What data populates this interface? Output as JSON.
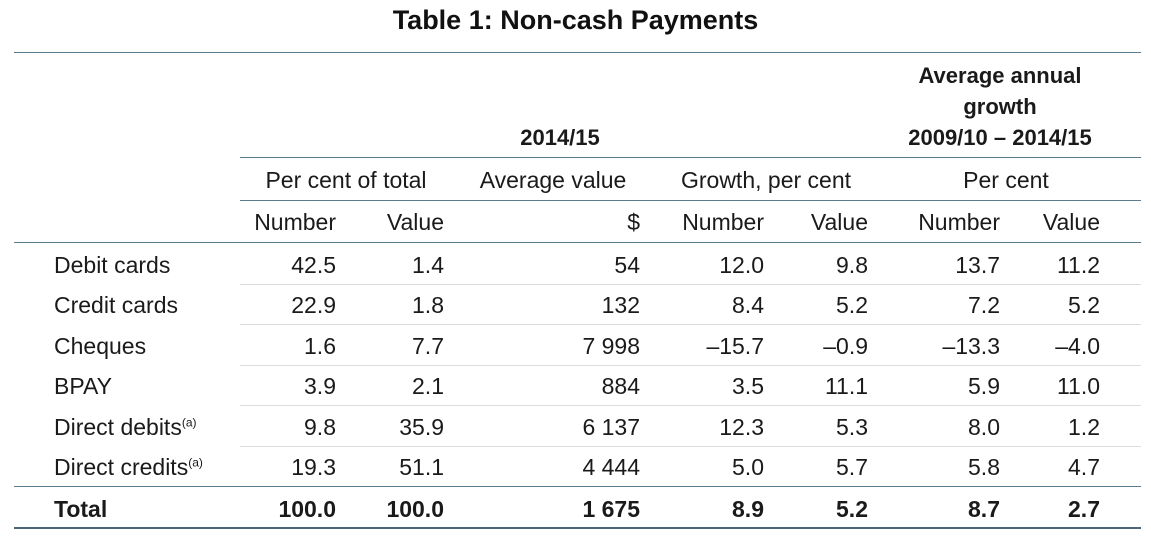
{
  "title": "Table 1: Non-cash Payments",
  "header": {
    "period_group": "2014/15",
    "growth_group": [
      "Average annual",
      "growth",
      "2009/10 – 2014/15"
    ],
    "sub_groups": {
      "per_cent_of_total": "Per cent of total",
      "average_value": "Average value",
      "growth_per_cent": "Growth, per cent",
      "per_cent": "Per cent"
    },
    "columns": [
      "Number",
      "Value",
      "$",
      "Number",
      "Value",
      "Number",
      "Value"
    ]
  },
  "rows": [
    {
      "label": "Debit cards",
      "note": "",
      "values": [
        "42.5",
        "1.4",
        "54",
        "12.0",
        "9.8",
        "13.7",
        "11.2"
      ]
    },
    {
      "label": "Credit cards",
      "note": "",
      "values": [
        "22.9",
        "1.8",
        "132",
        "8.4",
        "5.2",
        "7.2",
        "5.2"
      ]
    },
    {
      "label": "Cheques",
      "note": "",
      "values": [
        "1.6",
        "7.7",
        "7 998",
        "–15.7",
        "–0.9",
        "–13.3",
        "–4.0"
      ]
    },
    {
      "label": "BPAY",
      "note": "",
      "values": [
        "3.9",
        "2.1",
        "884",
        "3.5",
        "11.1",
        "5.9",
        "11.0"
      ]
    },
    {
      "label": "Direct debits",
      "note": "(a)",
      "values": [
        "9.8",
        "35.9",
        "6 137",
        "12.3",
        "5.3",
        "8.0",
        "1.2"
      ]
    },
    {
      "label": "Direct credits",
      "note": "(a)",
      "values": [
        "19.3",
        "51.1",
        "4 444",
        "5.0",
        "5.7",
        "5.8",
        "4.7"
      ]
    }
  ],
  "total": {
    "label": "Total",
    "values": [
      "100.0",
      "100.0",
      "1 675",
      "8.9",
      "5.2",
      "8.7",
      "2.7"
    ]
  }
}
